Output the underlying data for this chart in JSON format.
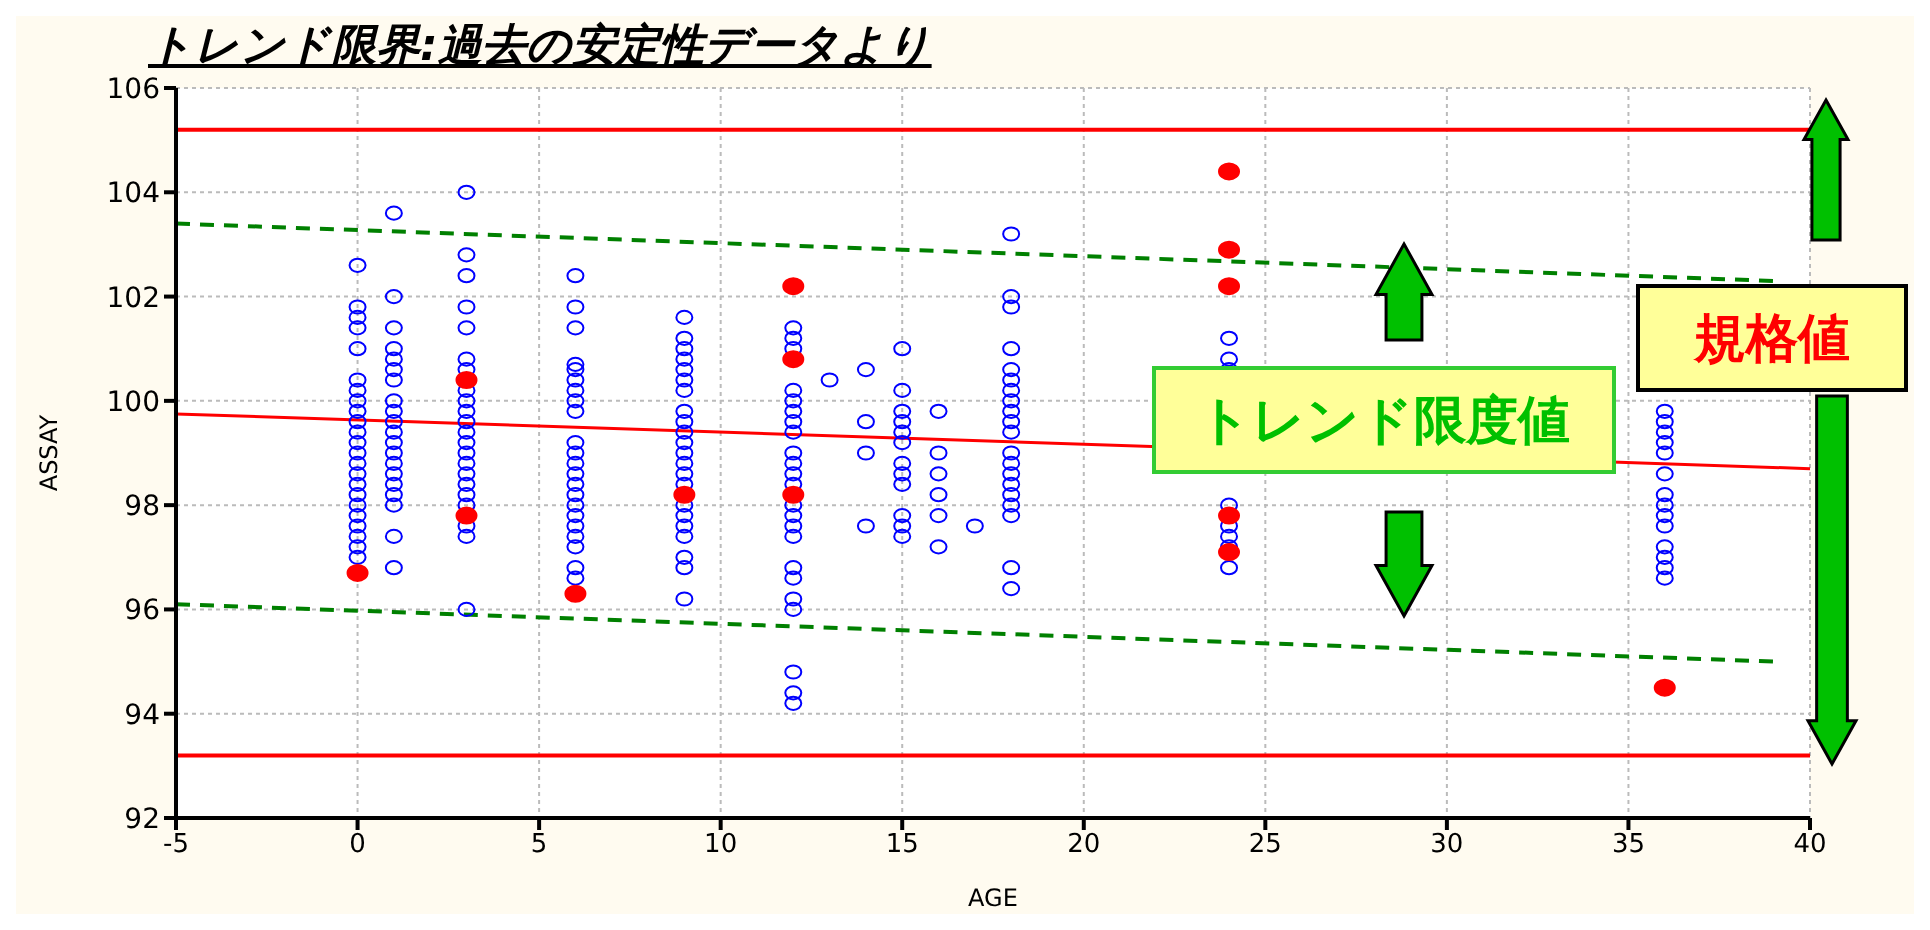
{
  "chart_data": {
    "type": "scatter",
    "title": "トレンド限界:過去の安定性データより",
    "xlabel": "AGE",
    "ylabel": "ASSAY",
    "xlim": [
      -5,
      40
    ],
    "xticks": [
      -5,
      0,
      5,
      10,
      15,
      20,
      25,
      30,
      35,
      40
    ],
    "ylim": [
      92,
      106
    ],
    "yticks": [
      92,
      94,
      96,
      98,
      100,
      102,
      104,
      106
    ],
    "grid": true,
    "series": [
      {
        "color": "#0000ff",
        "marker": "circle",
        "x": [
          0,
          0,
          0,
          0,
          0,
          0,
          0,
          0,
          0,
          0,
          0,
          0,
          0,
          0,
          0,
          0,
          0,
          0,
          0,
          0,
          0,
          0,
          0,
          1,
          1,
          1,
          1,
          1,
          1,
          1,
          1,
          1,
          1,
          1,
          1,
          1,
          1,
          1,
          1,
          1,
          1,
          1,
          1,
          3,
          3,
          3,
          3,
          3,
          3,
          3,
          3,
          3,
          3,
          3,
          3,
          3,
          3,
          3,
          3,
          3,
          3,
          3,
          3,
          3,
          3,
          6,
          6,
          6,
          6,
          6,
          6,
          6,
          6,
          6,
          6,
          6,
          6,
          6,
          6,
          6,
          6,
          6,
          6,
          6,
          6,
          6,
          6,
          9,
          9,
          9,
          9,
          9,
          9,
          9,
          9,
          9,
          9,
          9,
          9,
          9,
          9,
          9,
          9,
          9,
          9,
          9,
          9,
          9,
          9,
          12,
          12,
          12,
          12,
          12,
          12,
          12,
          12,
          12,
          12,
          12,
          12,
          12,
          12,
          12,
          12,
          12,
          12,
          12,
          12,
          12,
          12,
          12,
          13,
          14,
          14,
          14,
          14,
          15,
          15,
          15,
          15,
          15,
          15,
          15,
          15,
          15,
          15,
          15,
          15,
          16,
          16,
          16,
          16,
          16,
          16,
          17,
          18,
          18,
          18,
          18,
          18,
          18,
          18,
          18,
          18,
          18,
          18,
          18,
          18,
          18,
          18,
          18,
          18,
          18,
          18,
          18,
          24,
          24,
          24,
          24,
          24,
          24,
          24,
          24,
          36,
          36,
          36,
          36,
          36,
          36,
          36,
          36,
          36,
          36,
          36,
          36,
          36,
          36
        ],
        "values": [
          102.6,
          101.8,
          101.6,
          101.4,
          101.0,
          100.4,
          100.2,
          100.0,
          99.8,
          99.6,
          99.4,
          99.2,
          99.0,
          98.8,
          98.6,
          98.4,
          98.2,
          98.0,
          97.8,
          97.6,
          97.4,
          97.2,
          97.0,
          103.6,
          102.0,
          101.4,
          101.0,
          100.8,
          100.6,
          100.4,
          100.0,
          99.8,
          99.6,
          99.4,
          99.2,
          99.0,
          98.8,
          98.6,
          98.4,
          98.2,
          98.0,
          97.4,
          96.8,
          104.0,
          102.8,
          102.4,
          101.8,
          101.4,
          100.8,
          100.6,
          100.2,
          100.0,
          99.8,
          99.6,
          99.4,
          99.2,
          99.0,
          98.8,
          98.6,
          98.4,
          98.2,
          98.0,
          97.6,
          97.4,
          96.0,
          102.4,
          101.8,
          101.4,
          100.7,
          100.6,
          100.4,
          100.2,
          100.0,
          99.8,
          99.2,
          99.0,
          98.8,
          98.6,
          98.4,
          98.2,
          98.0,
          97.8,
          97.6,
          97.4,
          97.2,
          96.8,
          96.6,
          101.6,
          101.2,
          101.0,
          100.8,
          100.6,
          100.4,
          100.2,
          99.8,
          99.6,
          99.4,
          99.2,
          99.0,
          98.8,
          98.6,
          98.4,
          98.0,
          97.8,
          97.6,
          97.4,
          97.0,
          96.8,
          96.2,
          101.4,
          101.2,
          101.0,
          100.2,
          100.0,
          99.8,
          99.6,
          99.4,
          99.0,
          98.8,
          98.6,
          98.4,
          98.0,
          97.8,
          97.6,
          97.4,
          96.8,
          96.6,
          96.2,
          96.0,
          94.8,
          94.4,
          94.2,
          100.4,
          100.6,
          99.6,
          99.0,
          97.6,
          101.0,
          100.2,
          99.8,
          99.6,
          99.4,
          99.2,
          98.8,
          98.6,
          98.4,
          97.8,
          97.6,
          97.4,
          99.8,
          99.0,
          98.6,
          98.2,
          97.8,
          97.2,
          97.6,
          103.2,
          102.0,
          101.8,
          101.0,
          100.6,
          100.4,
          100.2,
          100.0,
          99.8,
          99.6,
          99.4,
          99.0,
          98.8,
          98.6,
          98.4,
          98.2,
          98.0,
          97.8,
          96.8,
          96.4,
          101.2,
          100.8,
          100.6,
          98.0,
          97.6,
          97.4,
          97.2,
          96.8,
          99.8,
          99.6,
          99.4,
          99.2,
          99.0,
          98.6,
          98.2,
          98.0,
          97.8,
          97.6,
          97.2,
          97.0,
          96.8,
          96.6
        ]
      },
      {
        "color": "#ff0000",
        "marker": "circle",
        "x": [
          0,
          3,
          3,
          6,
          9,
          12,
          12,
          12,
          24,
          24,
          24,
          24,
          24,
          36
        ],
        "values": [
          96.7,
          100.4,
          97.8,
          96.3,
          98.2,
          102.2,
          100.8,
          98.2,
          104.4,
          102.9,
          102.2,
          97.8,
          97.1,
          94.5
        ]
      },
      {
        "type": "line",
        "color": "#ff0000",
        "x": [
          -5,
          40
        ],
        "values": [
          99.75,
          98.7
        ],
        "line_style": "solid"
      },
      {
        "type": "line",
        "color": "#008000",
        "x": [
          -5,
          39
        ],
        "values": [
          103.4,
          102.3
        ],
        "line_style": "dashed"
      },
      {
        "type": "line",
        "color": "#008000",
        "x": [
          -5,
          39
        ],
        "values": [
          96.1,
          95.0
        ],
        "line_style": "dashed"
      }
    ],
    "ref_lines": [
      {
        "axis": "y",
        "value": 105.2,
        "color": "#ff0000"
      },
      {
        "axis": "y",
        "value": 93.2,
        "color": "#ff0000"
      }
    ],
    "annotations": [
      "トレンド限度値",
      "規格値"
    ]
  }
}
